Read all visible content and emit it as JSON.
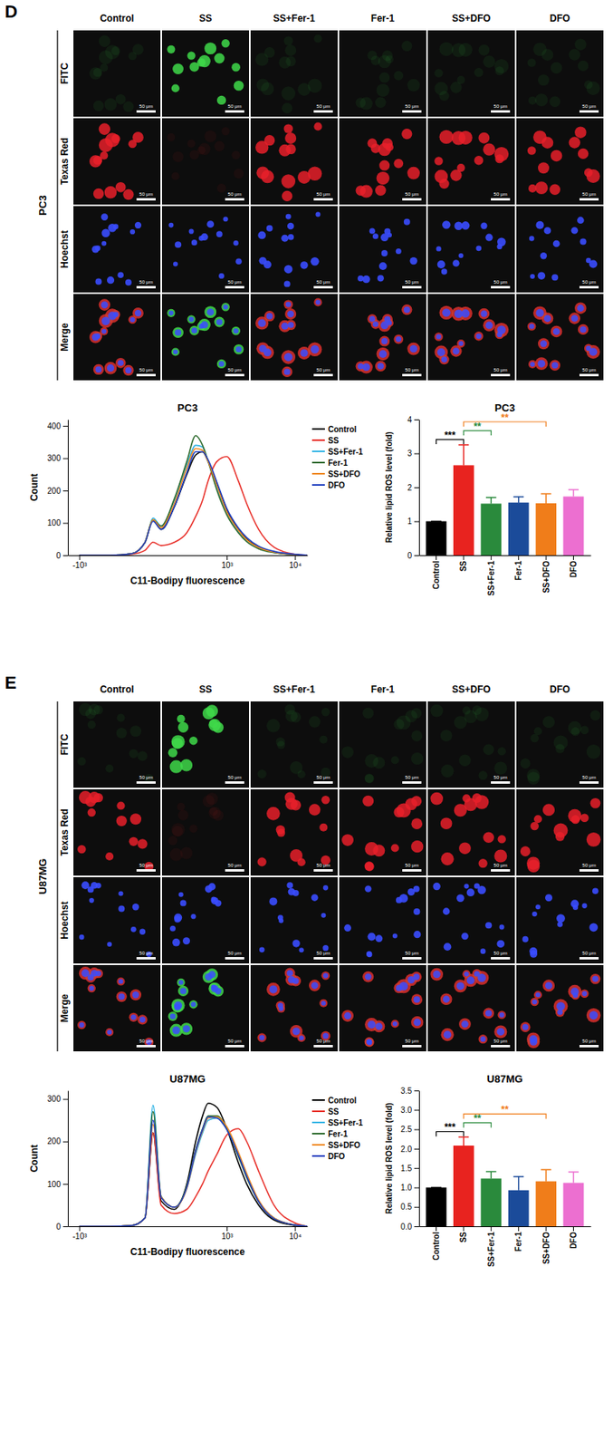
{
  "panels": [
    {
      "letter": "D",
      "cell_line": "PC3",
      "columns": [
        "Control",
        "SS",
        "SS+Fer-1",
        "Fer-1",
        "SS+DFO",
        "DFO"
      ],
      "rows": [
        "FITC",
        "Texas Red",
        "Hoechst",
        "Merge"
      ],
      "scale_bar": "50 μm"
    },
    {
      "letter": "E",
      "cell_line": "U87MG",
      "columns": [
        "Control",
        "SS",
        "SS+Fer-1",
        "Fer-1",
        "SS+DFO",
        "DFO"
      ],
      "rows": [
        "FITC",
        "Texas Red",
        "Hoechst",
        "Merge"
      ],
      "scale_bar": "50 μm"
    }
  ],
  "chart_data": [
    {
      "type": "line",
      "title": "PC3",
      "x_label": "C11-Bodipy fluorescence",
      "y_label": "Count",
      "log": "x",
      "x": [
        -1000,
        -300,
        -100,
        -30,
        0,
        30,
        100,
        200,
        300,
        400,
        500,
        700,
        1000,
        1500,
        2000,
        3000,
        5000,
        10000,
        15000
      ],
      "xlim": [
        -1500,
        15000
      ],
      "xticks": [
        {
          "value": -1000,
          "label": "-10³"
        },
        {
          "value": 1000,
          "label": "10³"
        },
        {
          "value": 10000,
          "label": "10⁴"
        }
      ],
      "ylim": [
        0,
        420
      ],
      "yticks": [
        0,
        100,
        200,
        300,
        400
      ],
      "legend": "upper right",
      "series": [
        {
          "name": "Control",
          "color": "#000000",
          "values": [
            0,
            0,
            5,
            40,
            110,
            80,
            150,
            250,
            310,
            320,
            290,
            220,
            140,
            80,
            50,
            25,
            10,
            2,
            0
          ]
        },
        {
          "name": "SS",
          "color": "#e8302a",
          "values": [
            0,
            0,
            3,
            15,
            40,
            30,
            40,
            70,
            120,
            170,
            230,
            290,
            305,
            230,
            160,
            80,
            25,
            3,
            0
          ]
        },
        {
          "name": "SS+Fer-1",
          "color": "#37b6e6",
          "values": [
            0,
            0,
            5,
            40,
            115,
            90,
            170,
            280,
            340,
            335,
            290,
            210,
            130,
            75,
            45,
            22,
            9,
            2,
            0
          ]
        },
        {
          "name": "Fer-1",
          "color": "#2e6b2e",
          "values": [
            0,
            0,
            5,
            40,
            110,
            90,
            175,
            290,
            370,
            340,
            290,
            200,
            125,
            70,
            42,
            20,
            8,
            2,
            0
          ]
        },
        {
          "name": "SS+DFO",
          "color": "#f08a24",
          "values": [
            0,
            0,
            5,
            40,
            110,
            85,
            160,
            270,
            330,
            325,
            290,
            215,
            135,
            78,
            48,
            24,
            10,
            2,
            0
          ]
        },
        {
          "name": "DFO",
          "color": "#1f3fbf",
          "values": [
            0,
            0,
            5,
            40,
            105,
            80,
            150,
            255,
            320,
            320,
            295,
            225,
            145,
            85,
            55,
            28,
            12,
            3,
            0
          ]
        }
      ]
    },
    {
      "type": "bar",
      "title": "PC3",
      "y_label": "Relative lipid ROS level (fold)",
      "categories": [
        "Control",
        "SS",
        "SS+Fer-1",
        "Fer-1",
        "SS+DFO",
        "DFO"
      ],
      "values": [
        1,
        2.65,
        1.52,
        1.55,
        1.53,
        1.73
      ],
      "errors": [
        0,
        0.6,
        0.18,
        0.17,
        0.28,
        0.2
      ],
      "colors": [
        "#000000",
        "#e8231f",
        "#2a8a3c",
        "#1b4b9a",
        "#f07d1a",
        "#ec6fd0"
      ],
      "ylim": [
        0,
        4
      ],
      "yticks": [
        0,
        1,
        2,
        3,
        4
      ],
      "annotations": [
        {
          "text": "***",
          "from": "Control",
          "to": "SS",
          "color": "#000000"
        },
        {
          "text": "**",
          "from": "SS",
          "to": "SS+Fer-1",
          "color": "#2a8a3c"
        },
        {
          "text": "**",
          "from": "SS",
          "to": "SS+DFO",
          "color": "#f07d1a"
        }
      ]
    },
    {
      "type": "line",
      "title": "U87MG",
      "x_label": "C11-Bodipy fluorescence",
      "y_label": "Count",
      "log": "x",
      "x": [
        -1000,
        -300,
        -100,
        -30,
        0,
        30,
        100,
        200,
        300,
        400,
        500,
        700,
        1000,
        1500,
        2000,
        3000,
        5000,
        10000,
        15000
      ],
      "xlim": [
        -1500,
        15000
      ],
      "xticks": [
        {
          "value": -1000,
          "label": "-10³"
        },
        {
          "value": 1000,
          "label": "10³"
        },
        {
          "value": 10000,
          "label": "10⁴"
        }
      ],
      "ylim": [
        0,
        320
      ],
      "yticks": [
        0,
        100,
        200,
        300
      ],
      "legend": "upper right",
      "series": [
        {
          "name": "Control",
          "color": "#000000",
          "values": [
            0,
            0,
            2,
            20,
            220,
            60,
            40,
            100,
            200,
            260,
            290,
            280,
            230,
            150,
            100,
            50,
            15,
            2,
            0
          ]
        },
        {
          "name": "SS",
          "color": "#e8302a",
          "values": [
            0,
            0,
            2,
            20,
            220,
            50,
            30,
            40,
            70,
            100,
            130,
            170,
            215,
            230,
            200,
            130,
            50,
            8,
            0
          ]
        },
        {
          "name": "SS+Fer-1",
          "color": "#37b6e6",
          "values": [
            0,
            0,
            2,
            20,
            285,
            70,
            45,
            90,
            170,
            220,
            250,
            255,
            230,
            170,
            120,
            60,
            20,
            3,
            0
          ]
        },
        {
          "name": "Fer-1",
          "color": "#2e6b2e",
          "values": [
            0,
            0,
            2,
            20,
            270,
            70,
            45,
            95,
            180,
            230,
            260,
            260,
            230,
            165,
            115,
            58,
            18,
            3,
            0
          ]
        },
        {
          "name": "SS+DFO",
          "color": "#f08a24",
          "values": [
            0,
            0,
            2,
            20,
            240,
            70,
            45,
            90,
            175,
            225,
            255,
            258,
            235,
            175,
            125,
            62,
            20,
            3,
            0
          ]
        },
        {
          "name": "DFO",
          "color": "#1f3fbf",
          "values": [
            0,
            0,
            2,
            20,
            250,
            68,
            45,
            92,
            178,
            228,
            258,
            255,
            228,
            168,
            118,
            58,
            18,
            3,
            0
          ]
        }
      ]
    },
    {
      "type": "bar",
      "title": "U87MG",
      "y_label": "Relative lipid ROS level (fold)",
      "categories": [
        "Control",
        "SS",
        "SS+Fer-1",
        "Fer-1",
        "SS+DFO",
        "DFO"
      ],
      "values": [
        1,
        2.08,
        1.23,
        0.93,
        1.16,
        1.12
      ],
      "errors": [
        0,
        0.22,
        0.18,
        0.35,
        0.3,
        0.28
      ],
      "colors": [
        "#000000",
        "#e8231f",
        "#2a8a3c",
        "#1b4b9a",
        "#f07d1a",
        "#ec6fd0"
      ],
      "ylim": [
        0,
        3.5
      ],
      "yticks": [
        {
          "value": 0,
          "label": "0.0"
        },
        {
          "value": 0.5,
          "label": "0.5"
        },
        {
          "value": 1,
          "label": "1.0"
        },
        {
          "value": 1.5,
          "label": "1.5"
        },
        {
          "value": 2,
          "label": "2.0"
        },
        {
          "value": 2.5,
          "label": "2.5"
        },
        {
          "value": 3,
          "label": "3.0"
        },
        {
          "value": 3.5,
          "label": "3.5"
        }
      ],
      "annotations": [
        {
          "text": "***",
          "from": "Control",
          "to": "SS",
          "color": "#000000"
        },
        {
          "text": "**",
          "from": "SS",
          "to": "SS+Fer-1",
          "color": "#2a8a3c"
        },
        {
          "text": "**",
          "from": "SS",
          "to": "SS+DFO",
          "color": "#f07d1a"
        }
      ]
    }
  ]
}
